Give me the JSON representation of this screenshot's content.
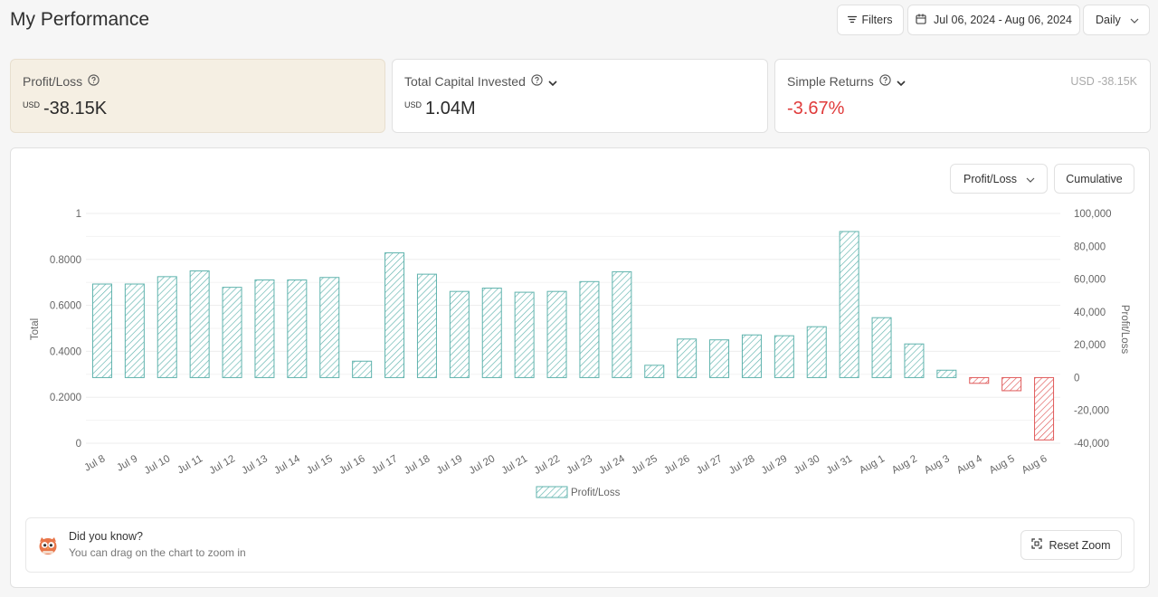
{
  "page": {
    "title": "My Performance"
  },
  "toolbar": {
    "filters_label": "Filters",
    "date_range": "Jul 06, 2024 - Aug 06, 2024",
    "granularity": "Daily"
  },
  "cards": {
    "profit_loss": {
      "label": "Profit/Loss",
      "currency": "USD",
      "value": "-38.15K"
    },
    "total_capital": {
      "label": "Total Capital Invested",
      "currency": "USD",
      "value": "1.04M"
    },
    "simple_returns": {
      "label": "Simple Returns",
      "value": "-3.67%",
      "aux": "USD -38.15K"
    }
  },
  "chart_controls": {
    "metric": "Profit/Loss",
    "mode": "Cumulative"
  },
  "colors": {
    "positive": "#5fb3ad",
    "negative": "#e05a5a",
    "card_highlight": "#f5efe3"
  },
  "chart_data": {
    "type": "bar",
    "title": "",
    "xlabel": "",
    "ylabel_left": "Total",
    "ylabel_right": "Profit/Loss",
    "left_ticks": [
      "0",
      "0.2000",
      "0.4000",
      "0.6000",
      "0.8000",
      "1"
    ],
    "right_ticks": [
      "-40,000",
      "-20,000",
      "0",
      "20,000",
      "40,000",
      "60,000",
      "80,000",
      "100,000"
    ],
    "ylim_left": [
      0,
      1
    ],
    "ylim_right": [
      -40000,
      100000
    ],
    "legend": "Profit/Loss",
    "categories": [
      "Jul 8",
      "Jul 9",
      "Jul 10",
      "Jul 11",
      "Jul 12",
      "Jul 13",
      "Jul 14",
      "Jul 15",
      "Jul 16",
      "Jul 17",
      "Jul 18",
      "Jul 19",
      "Jul 20",
      "Jul 21",
      "Jul 22",
      "Jul 23",
      "Jul 24",
      "Jul 25",
      "Jul 26",
      "Jul 27",
      "Jul 28",
      "Jul 29",
      "Jul 30",
      "Jul 31",
      "Aug 1",
      "Aug 2",
      "Aug 3",
      "Aug 4",
      "Aug 5",
      "Aug 6"
    ],
    "series": [
      {
        "name": "Profit/Loss",
        "values": [
          57000,
          57000,
          61500,
          65000,
          55000,
          59500,
          59500,
          61000,
          10000,
          76000,
          63000,
          52500,
          54500,
          52000,
          52500,
          58500,
          64500,
          7500,
          23500,
          23000,
          26000,
          25500,
          31000,
          89000,
          36500,
          20500,
          4500,
          -3500,
          -8000,
          -38000
        ]
      }
    ]
  },
  "tip": {
    "title": "Did you know?",
    "text": "You can drag on the chart to zoom in",
    "reset_label": "Reset Zoom"
  }
}
